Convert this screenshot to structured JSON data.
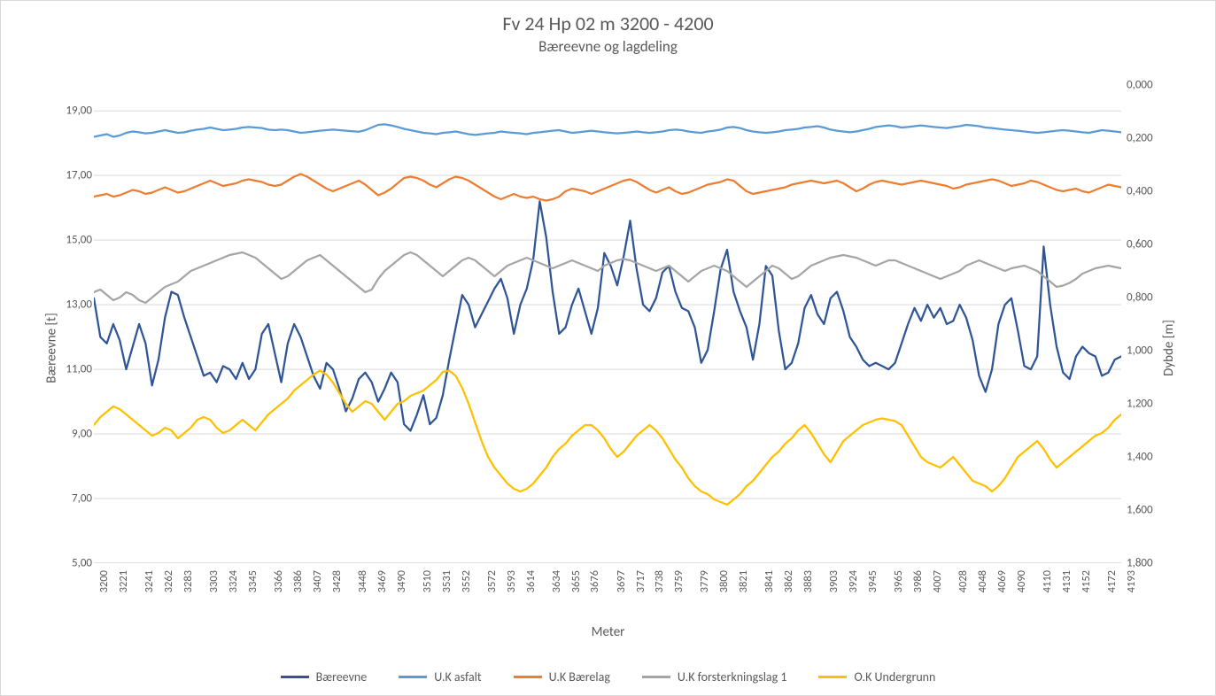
{
  "chart": {
    "type": "line",
    "title": "Fv 24 Hp 02 m 3200 - 4200",
    "subtitle": "Bæreevne og lagdeling",
    "title_fontsize": 22,
    "subtitle_fontsize": 17,
    "font_family": "Calibri",
    "text_color": "#595959",
    "background_color": "#ffffff",
    "plot_border_color": "#d9d9d9",
    "grid_color": "#d9d9d9",
    "axis_line_color": "#bfbfbf",
    "plot_area_bg": "#ffffff",
    "line_width": 2.25,
    "x_axis": {
      "label": "Meter",
      "ticks": [
        3200,
        3221,
        3241,
        3262,
        3283,
        3303,
        3324,
        3345,
        3366,
        3386,
        3407,
        3428,
        3448,
        3469,
        3490,
        3510,
        3531,
        3552,
        3572,
        3593,
        3614,
        3634,
        3655,
        3676,
        3697,
        3717,
        3738,
        3759,
        3779,
        3800,
        3821,
        3841,
        3862,
        3883,
        3903,
        3924,
        3945,
        3965,
        3986,
        4007,
        4028,
        4048,
        4069,
        4090,
        4110,
        4131,
        4152,
        4172,
        4193
      ],
      "tick_rotation": -90,
      "tick_fontsize": 12.5
    },
    "y_axis_left": {
      "label": "Bæreevne [t]",
      "min": 5.0,
      "max": 19.8,
      "ticks": [
        "5,00",
        "7,00",
        "9,00",
        "11,00",
        "13,00",
        "15,00",
        "17,00",
        "19,00"
      ],
      "tick_values": [
        5,
        7,
        9,
        11,
        13,
        15,
        17,
        19
      ],
      "tick_fontsize": 13
    },
    "y_axis_right": {
      "label": "Dybde [m]",
      "min": 1.8,
      "max": 0.0,
      "ticks": [
        "0,000",
        "0,200",
        "0,400",
        "0,600",
        "0,800",
        "1,000",
        "1,200",
        "1,400",
        "1,600",
        "1,800"
      ],
      "tick_values": [
        0.0,
        0.2,
        0.4,
        0.6,
        0.8,
        1.0,
        1.2,
        1.4,
        1.6,
        1.8
      ],
      "tick_fontsize": 13
    },
    "legend": {
      "position": "bottom",
      "items": [
        {
          "label": "Bæreevne",
          "color": "#2f5597"
        },
        {
          "label": "U.K asfalt",
          "color": "#5b9bd5"
        },
        {
          "label": "U.K Bærelag",
          "color": "#ed7d31"
        },
        {
          "label": "U.K forsterkningslag 1",
          "color": "#a5a5a5"
        },
        {
          "label": "O.K Undergrunn",
          "color": "#ffc000"
        }
      ]
    },
    "series": [
      {
        "name": "Bæreevne",
        "color": "#2f5597",
        "axis": "left",
        "values": [
          13.2,
          12.0,
          11.8,
          12.4,
          11.9,
          11.0,
          11.7,
          12.4,
          11.8,
          10.5,
          11.3,
          12.6,
          13.4,
          13.3,
          12.6,
          12.0,
          11.4,
          10.8,
          10.9,
          10.6,
          11.1,
          11.0,
          10.7,
          11.2,
          10.7,
          11.0,
          12.1,
          12.4,
          11.5,
          10.6,
          11.8,
          12.4,
          12.0,
          11.4,
          10.8,
          10.4,
          11.2,
          11.0,
          10.4,
          9.7,
          10.1,
          10.7,
          10.9,
          10.6,
          10.0,
          10.4,
          10.9,
          10.6,
          9.3,
          9.1,
          9.6,
          10.2,
          9.3,
          9.5,
          10.2,
          11.3,
          12.3,
          13.3,
          13.0,
          12.3,
          12.7,
          13.1,
          13.5,
          13.8,
          13.2,
          12.1,
          13.0,
          13.5,
          14.4,
          16.2,
          15.1,
          13.4,
          12.1,
          12.3,
          13.0,
          13.5,
          12.8,
          12.1,
          12.9,
          14.6,
          14.2,
          13.6,
          14.5,
          15.6,
          14.1,
          13.0,
          12.8,
          13.2,
          14.0,
          14.2,
          13.4,
          12.9,
          12.8,
          12.3,
          11.2,
          11.6,
          12.8,
          14.1,
          14.7,
          13.4,
          12.8,
          12.3,
          11.3,
          12.4,
          14.2,
          13.9,
          12.2,
          11.0,
          11.2,
          11.8,
          12.9,
          13.3,
          12.7,
          12.4,
          13.2,
          13.4,
          12.8,
          12.0,
          11.7,
          11.3,
          11.1,
          11.2,
          11.1,
          11.0,
          11.2,
          11.8,
          12.4,
          12.9,
          12.5,
          13.0,
          12.6,
          12.9,
          12.4,
          12.5,
          13.0,
          12.6,
          11.9,
          10.8,
          10.3,
          11.0,
          12.4,
          13.0,
          13.2,
          12.2,
          11.1,
          11.0,
          11.4,
          14.8,
          13.0,
          11.7,
          10.9,
          10.7,
          11.4,
          11.7,
          11.5,
          11.4,
          10.8,
          10.9,
          11.3,
          11.4
        ]
      },
      {
        "name": "U.K asfalt",
        "color": "#5b9bd5",
        "axis": "right",
        "values": [
          0.195,
          0.19,
          0.185,
          0.195,
          0.19,
          0.18,
          0.175,
          0.178,
          0.182,
          0.18,
          0.175,
          0.17,
          0.175,
          0.18,
          0.178,
          0.172,
          0.168,
          0.165,
          0.16,
          0.165,
          0.17,
          0.168,
          0.165,
          0.16,
          0.158,
          0.16,
          0.162,
          0.168,
          0.17,
          0.168,
          0.17,
          0.175,
          0.18,
          0.178,
          0.175,
          0.172,
          0.17,
          0.168,
          0.17,
          0.172,
          0.174,
          0.176,
          0.17,
          0.16,
          0.15,
          0.148,
          0.152,
          0.158,
          0.165,
          0.17,
          0.175,
          0.18,
          0.182,
          0.185,
          0.18,
          0.178,
          0.175,
          0.18,
          0.185,
          0.188,
          0.185,
          0.182,
          0.18,
          0.175,
          0.178,
          0.18,
          0.182,
          0.185,
          0.18,
          0.178,
          0.175,
          0.172,
          0.17,
          0.175,
          0.18,
          0.178,
          0.175,
          0.172,
          0.175,
          0.178,
          0.18,
          0.182,
          0.18,
          0.178,
          0.175,
          0.178,
          0.18,
          0.178,
          0.175,
          0.17,
          0.168,
          0.17,
          0.175,
          0.178,
          0.18,
          0.175,
          0.172,
          0.168,
          0.16,
          0.158,
          0.162,
          0.17,
          0.175,
          0.178,
          0.18,
          0.178,
          0.175,
          0.17,
          0.168,
          0.165,
          0.16,
          0.158,
          0.155,
          0.16,
          0.168,
          0.172,
          0.175,
          0.178,
          0.175,
          0.17,
          0.165,
          0.158,
          0.155,
          0.152,
          0.155,
          0.16,
          0.158,
          0.155,
          0.152,
          0.155,
          0.158,
          0.16,
          0.162,
          0.158,
          0.155,
          0.15,
          0.152,
          0.155,
          0.16,
          0.162,
          0.165,
          0.168,
          0.17,
          0.172,
          0.175,
          0.178,
          0.18,
          0.178,
          0.175,
          0.172,
          0.17,
          0.172,
          0.175,
          0.178,
          0.18,
          0.175,
          0.17,
          0.172,
          0.175,
          0.178
        ]
      },
      {
        "name": "U.K Bærelag",
        "color": "#ed7d31",
        "axis": "right",
        "values": [
          0.42,
          0.415,
          0.41,
          0.42,
          0.415,
          0.405,
          0.395,
          0.4,
          0.41,
          0.405,
          0.395,
          0.385,
          0.395,
          0.405,
          0.4,
          0.39,
          0.38,
          0.37,
          0.36,
          0.37,
          0.38,
          0.375,
          0.37,
          0.36,
          0.355,
          0.36,
          0.365,
          0.375,
          0.38,
          0.375,
          0.36,
          0.345,
          0.335,
          0.345,
          0.36,
          0.375,
          0.39,
          0.4,
          0.39,
          0.38,
          0.37,
          0.36,
          0.375,
          0.395,
          0.415,
          0.405,
          0.39,
          0.37,
          0.35,
          0.345,
          0.35,
          0.36,
          0.375,
          0.385,
          0.37,
          0.355,
          0.345,
          0.35,
          0.36,
          0.375,
          0.39,
          0.405,
          0.42,
          0.43,
          0.42,
          0.41,
          0.42,
          0.425,
          0.42,
          0.43,
          0.435,
          0.43,
          0.42,
          0.4,
          0.39,
          0.395,
          0.4,
          0.41,
          0.4,
          0.39,
          0.38,
          0.37,
          0.36,
          0.355,
          0.365,
          0.38,
          0.395,
          0.405,
          0.395,
          0.385,
          0.4,
          0.41,
          0.405,
          0.395,
          0.385,
          0.375,
          0.37,
          0.365,
          0.355,
          0.36,
          0.38,
          0.4,
          0.41,
          0.405,
          0.4,
          0.395,
          0.39,
          0.385,
          0.375,
          0.37,
          0.365,
          0.36,
          0.365,
          0.37,
          0.365,
          0.36,
          0.37,
          0.385,
          0.4,
          0.39,
          0.375,
          0.365,
          0.36,
          0.365,
          0.37,
          0.375,
          0.37,
          0.365,
          0.36,
          0.365,
          0.37,
          0.375,
          0.38,
          0.39,
          0.385,
          0.375,
          0.37,
          0.365,
          0.36,
          0.355,
          0.36,
          0.37,
          0.38,
          0.375,
          0.37,
          0.36,
          0.365,
          0.375,
          0.385,
          0.395,
          0.4,
          0.395,
          0.39,
          0.4,
          0.405,
          0.395,
          0.385,
          0.375,
          0.38,
          0.385
        ]
      },
      {
        "name": "U.K forsterkningslag 1",
        "color": "#a5a5a5",
        "axis": "right",
        "values": [
          0.78,
          0.77,
          0.79,
          0.81,
          0.8,
          0.78,
          0.79,
          0.81,
          0.82,
          0.8,
          0.78,
          0.76,
          0.75,
          0.74,
          0.72,
          0.7,
          0.69,
          0.68,
          0.67,
          0.66,
          0.65,
          0.64,
          0.635,
          0.63,
          0.64,
          0.65,
          0.67,
          0.69,
          0.71,
          0.73,
          0.72,
          0.7,
          0.68,
          0.66,
          0.65,
          0.64,
          0.66,
          0.68,
          0.7,
          0.72,
          0.74,
          0.76,
          0.78,
          0.77,
          0.73,
          0.7,
          0.68,
          0.66,
          0.64,
          0.63,
          0.64,
          0.66,
          0.68,
          0.7,
          0.72,
          0.7,
          0.68,
          0.66,
          0.65,
          0.66,
          0.68,
          0.7,
          0.72,
          0.7,
          0.68,
          0.67,
          0.66,
          0.65,
          0.66,
          0.67,
          0.68,
          0.69,
          0.68,
          0.67,
          0.66,
          0.67,
          0.68,
          0.69,
          0.7,
          0.68,
          0.67,
          0.66,
          0.655,
          0.66,
          0.67,
          0.68,
          0.69,
          0.7,
          0.69,
          0.68,
          0.7,
          0.72,
          0.74,
          0.72,
          0.7,
          0.69,
          0.68,
          0.69,
          0.7,
          0.72,
          0.74,
          0.76,
          0.74,
          0.72,
          0.7,
          0.68,
          0.69,
          0.71,
          0.73,
          0.72,
          0.7,
          0.68,
          0.67,
          0.66,
          0.65,
          0.645,
          0.64,
          0.645,
          0.65,
          0.66,
          0.67,
          0.68,
          0.67,
          0.66,
          0.66,
          0.67,
          0.68,
          0.69,
          0.7,
          0.71,
          0.72,
          0.73,
          0.72,
          0.71,
          0.7,
          0.68,
          0.67,
          0.66,
          0.67,
          0.68,
          0.69,
          0.7,
          0.69,
          0.685,
          0.68,
          0.69,
          0.7,
          0.72,
          0.74,
          0.76,
          0.755,
          0.745,
          0.73,
          0.71,
          0.7,
          0.69,
          0.685,
          0.68,
          0.685,
          0.69
        ]
      },
      {
        "name": "O.K Undergrunn",
        "color": "#ffc000",
        "axis": "right",
        "values": [
          1.28,
          1.25,
          1.23,
          1.21,
          1.22,
          1.24,
          1.26,
          1.28,
          1.3,
          1.32,
          1.31,
          1.29,
          1.3,
          1.33,
          1.31,
          1.29,
          1.26,
          1.25,
          1.26,
          1.29,
          1.31,
          1.3,
          1.28,
          1.26,
          1.28,
          1.3,
          1.27,
          1.24,
          1.22,
          1.2,
          1.18,
          1.15,
          1.13,
          1.11,
          1.09,
          1.075,
          1.09,
          1.12,
          1.16,
          1.2,
          1.23,
          1.21,
          1.19,
          1.2,
          1.23,
          1.26,
          1.23,
          1.2,
          1.19,
          1.17,
          1.16,
          1.15,
          1.13,
          1.11,
          1.08,
          1.075,
          1.095,
          1.14,
          1.2,
          1.27,
          1.34,
          1.4,
          1.44,
          1.47,
          1.5,
          1.52,
          1.53,
          1.52,
          1.5,
          1.47,
          1.44,
          1.4,
          1.37,
          1.35,
          1.32,
          1.3,
          1.28,
          1.28,
          1.3,
          1.33,
          1.37,
          1.4,
          1.38,
          1.35,
          1.32,
          1.3,
          1.28,
          1.3,
          1.33,
          1.37,
          1.41,
          1.44,
          1.48,
          1.51,
          1.53,
          1.54,
          1.56,
          1.57,
          1.58,
          1.56,
          1.54,
          1.51,
          1.49,
          1.46,
          1.43,
          1.4,
          1.38,
          1.35,
          1.33,
          1.3,
          1.28,
          1.31,
          1.35,
          1.39,
          1.42,
          1.38,
          1.34,
          1.32,
          1.3,
          1.28,
          1.27,
          1.26,
          1.255,
          1.26,
          1.265,
          1.28,
          1.32,
          1.36,
          1.4,
          1.42,
          1.43,
          1.44,
          1.42,
          1.4,
          1.43,
          1.46,
          1.49,
          1.5,
          1.51,
          1.53,
          1.51,
          1.48,
          1.44,
          1.4,
          1.38,
          1.36,
          1.34,
          1.37,
          1.41,
          1.44,
          1.42,
          1.4,
          1.38,
          1.36,
          1.34,
          1.32,
          1.31,
          1.29,
          1.26,
          1.24
        ]
      }
    ]
  }
}
